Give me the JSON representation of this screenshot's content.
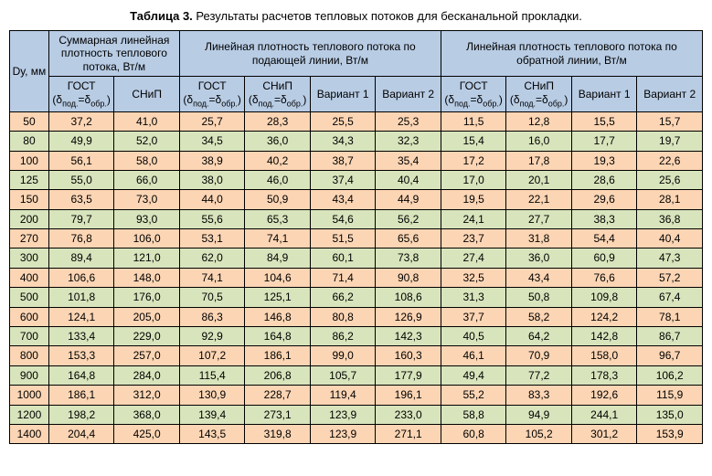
{
  "caption_label": "Таблица 3.",
  "caption_text": " Результаты расчетов тепловых потоков для бесканальной прокладки.",
  "header": {
    "dy": "Dу, мм",
    "group_sum": "Суммарная линейная плотность теплового потока, Вт/м",
    "group_supply": "Линейная плотность теплового потока по подающей линии, Вт/м",
    "group_return": "Линейная плотность теплового потока по обратной линии, Вт/м",
    "gost": "ГОСТ",
    "gost_sub": "(δ",
    "gost_sub2": "под.",
    "gost_sub3": "=δ",
    "gost_sub4": "обр.",
    "gost_sub5": ")",
    "snip": "СНиП",
    "snip_sub": "(δ",
    "snip_sub2": "под.",
    "snip_sub3": "=δ",
    "snip_sub4": "обр.",
    "snip_sub5": ")",
    "var1": "Вариант 1",
    "var2": "Вариант 2"
  },
  "rows": [
    {
      "dy": "50",
      "c": [
        "37,2",
        "41,0",
        "25,7",
        "28,3",
        "25,5",
        "25,3",
        "11,5",
        "12,8",
        "15,5",
        "15,7"
      ],
      "cls": "orange"
    },
    {
      "dy": "80",
      "c": [
        "49,9",
        "52,0",
        "34,5",
        "36,0",
        "34,3",
        "32,3",
        "15,4",
        "16,0",
        "17,7",
        "19,7"
      ],
      "cls": "green"
    },
    {
      "dy": "100",
      "c": [
        "56,1",
        "58,0",
        "38,9",
        "40,2",
        "38,7",
        "35,4",
        "17,2",
        "17,8",
        "19,3",
        "22,6"
      ],
      "cls": "orange"
    },
    {
      "dy": "125",
      "c": [
        "55,0",
        "66,0",
        "38,0",
        "46,0",
        "37,4",
        "40,4",
        "17,0",
        "20,1",
        "28,6",
        "25,6"
      ],
      "cls": "green"
    },
    {
      "dy": "150",
      "c": [
        "63,5",
        "73,0",
        "44,0",
        "50,9",
        "43,4",
        "44,9",
        "19,5",
        "22,1",
        "29,6",
        "28,1"
      ],
      "cls": "orange"
    },
    {
      "dy": "200",
      "c": [
        "79,7",
        "93,0",
        "55,6",
        "65,3",
        "54,6",
        "56,2",
        "24,1",
        "27,7",
        "38,3",
        "36,8"
      ],
      "cls": "green"
    },
    {
      "dy": "270",
      "c": [
        "76,8",
        "106,0",
        "53,1",
        "74,1",
        "51,5",
        "65,6",
        "23,7",
        "31,8",
        "54,4",
        "40,4"
      ],
      "cls": "orange"
    },
    {
      "dy": "300",
      "c": [
        "89,4",
        "121,0",
        "62,0",
        "84,9",
        "60,1",
        "73,8",
        "27,4",
        "36,0",
        "60,9",
        "47,3"
      ],
      "cls": "green"
    },
    {
      "dy": "400",
      "c": [
        "106,6",
        "148,0",
        "74,1",
        "104,6",
        "71,4",
        "90,8",
        "32,5",
        "43,4",
        "76,6",
        "57,2"
      ],
      "cls": "orange"
    },
    {
      "dy": "500",
      "c": [
        "101,8",
        "176,0",
        "70,5",
        "125,1",
        "66,2",
        "108,6",
        "31,3",
        "50,8",
        "109,8",
        "67,4"
      ],
      "cls": "green"
    },
    {
      "dy": "600",
      "c": [
        "124,1",
        "205,0",
        "86,3",
        "146,8",
        "80,8",
        "126,9",
        "37,7",
        "58,2",
        "124,2",
        "78,1"
      ],
      "cls": "orange"
    },
    {
      "dy": "700",
      "c": [
        "133,4",
        "229,0",
        "92,9",
        "164,8",
        "86,2",
        "142,3",
        "40,5",
        "64,2",
        "142,8",
        "86,7"
      ],
      "cls": "green"
    },
    {
      "dy": "800",
      "c": [
        "153,3",
        "257,0",
        "107,2",
        "186,1",
        "99,0",
        "160,3",
        "46,1",
        "70,9",
        "158,0",
        "96,7"
      ],
      "cls": "orange"
    },
    {
      "dy": "900",
      "c": [
        "164,8",
        "284,0",
        "115,4",
        "206,8",
        "105,7",
        "177,9",
        "49,4",
        "77,2",
        "178,3",
        "106,2"
      ],
      "cls": "green"
    },
    {
      "dy": "1000",
      "c": [
        "186,1",
        "312,0",
        "130,9",
        "228,7",
        "119,4",
        "196,1",
        "55,2",
        "83,3",
        "192,6",
        "115,9"
      ],
      "cls": "orange"
    },
    {
      "dy": "1200",
      "c": [
        "198,2",
        "368,0",
        "139,4",
        "273,1",
        "123,9",
        "233,0",
        "58,8",
        "94,9",
        "244,1",
        "135,0"
      ],
      "cls": "green"
    },
    {
      "dy": "1400",
      "c": [
        "204,4",
        "425,0",
        "143,5",
        "319,8",
        "123,9",
        "271,1",
        "60,8",
        "105,2",
        "301,2",
        "153,9"
      ],
      "cls": "orange"
    }
  ]
}
